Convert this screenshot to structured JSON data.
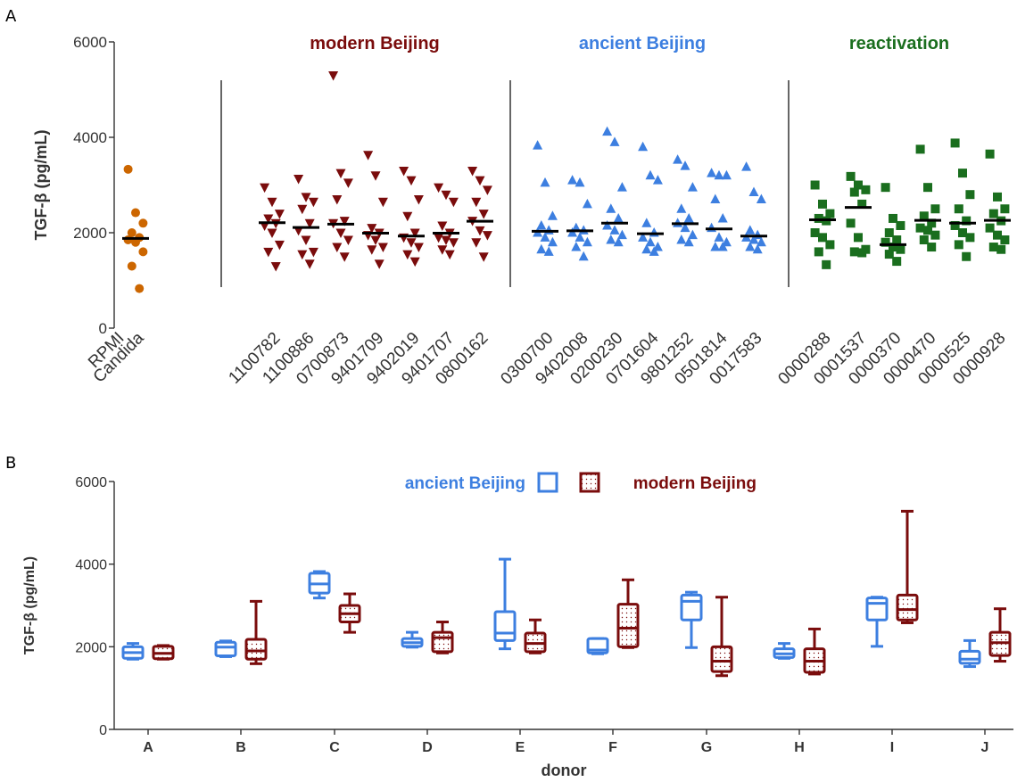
{
  "panel_a_letter": "A",
  "panel_b_letter": "B",
  "chart_data": [
    {
      "type": "scatter",
      "ylabel": "TGF-β (pg/mL)",
      "ylim": [
        0,
        6000
      ],
      "yticks": [
        "0",
        "2000",
        "4000",
        "6000"
      ],
      "median_marker": "horizontal black bar",
      "groups": [
        {
          "title": "",
          "color": "#cc6600",
          "marker": "circle",
          "categories": [
            {
              "label": "RPMI",
              "values": []
            },
            {
              "label": "Candida",
              "values": [
                3330,
                2420,
                2200,
                2000,
                1900,
                1850,
                1800,
                1600,
                1300,
                830
              ],
              "median": 1880
            }
          ]
        },
        {
          "title": "modern Beijing",
          "color": "#7a0c0c",
          "marker": "triangle-down",
          "categories": [
            {
              "label": "1100782",
              "values": [
                2950,
                2650,
                2400,
                2300,
                2200,
                2150,
                2000,
                1750,
                1600,
                1300
              ],
              "median": 2210
            },
            {
              "label": "1100886",
              "values": [
                3130,
                2750,
                2650,
                2500,
                2200,
                2050,
                1850,
                1600,
                1550,
                1350
              ],
              "median": 2110
            },
            {
              "label": "0700873",
              "values": [
                5300,
                3250,
                3050,
                2700,
                2250,
                2200,
                2000,
                1850,
                1700,
                1500
              ],
              "median": 2180
            },
            {
              "label": "9401709",
              "values": [
                3630,
                3200,
                2650,
                2100,
                2000,
                1950,
                1850,
                1700,
                1650,
                1350
              ],
              "median": 1990
            },
            {
              "label": "9402019",
              "values": [
                3300,
                3100,
                2700,
                2350,
                2000,
                1900,
                1800,
                1700,
                1550,
                1400
              ],
              "median": 1930
            },
            {
              "label": "9401707",
              "values": [
                2950,
                2800,
                2650,
                2150,
                2000,
                1900,
                1850,
                1800,
                1650,
                1550
              ],
              "median": 1990
            },
            {
              "label": "0800162",
              "values": [
                3300,
                3100,
                2900,
                2650,
                2400,
                2250,
                2050,
                1950,
                1800,
                1500
              ],
              "median": 2240
            }
          ]
        },
        {
          "title": "ancient Beijing",
          "color": "#3d7fe0",
          "marker": "triangle-up",
          "categories": [
            {
              "label": "0300700",
              "values": [
                3830,
                3050,
                2350,
                2150,
                2050,
                2000,
                1900,
                1800,
                1650,
                1600
              ],
              "median": 2030
            },
            {
              "label": "9402008",
              "values": [
                3100,
                3050,
                2600,
                2100,
                2050,
                2000,
                1900,
                1800,
                1700,
                1500
              ],
              "median": 2040
            },
            {
              "label": "0200230",
              "values": [
                4120,
                3900,
                2950,
                2500,
                2300,
                2150,
                2050,
                1950,
                1850,
                1800
              ],
              "median": 2200
            },
            {
              "label": "0701604",
              "values": [
                3800,
                3200,
                3100,
                2200,
                2000,
                1900,
                1800,
                1700,
                1650,
                1600
              ],
              "median": 1980
            },
            {
              "label": "9801252",
              "values": [
                3530,
                3400,
                2950,
                2500,
                2300,
                2200,
                2100,
                1950,
                1850,
                1800
              ],
              "median": 2190
            },
            {
              "label": "0501814",
              "values": [
                3250,
                3200,
                3200,
                2700,
                2300,
                2100,
                1900,
                1800,
                1700,
                1700
              ],
              "median": 2080
            },
            {
              "label": "0017583",
              "values": [
                3380,
                2850,
                2700,
                2050,
                1950,
                1900,
                1850,
                1800,
                1700,
                1650
              ],
              "median": 1930
            }
          ]
        },
        {
          "title": "reactivation",
          "color": "#1a6e1e",
          "marker": "square",
          "categories": [
            {
              "label": "0000288",
              "values": [
                3000,
                2600,
                2400,
                2300,
                2250,
                2000,
                1900,
                1750,
                1600,
                1330
              ],
              "median": 2270
            },
            {
              "label": "0001537",
              "values": [
                3180,
                3000,
                2900,
                2850,
                2600,
                2200,
                1900,
                1650,
                1600,
                1580
              ],
              "median": 2530
            },
            {
              "label": "0000370",
              "values": [
                2950,
                2300,
                2150,
                2000,
                1850,
                1800,
                1700,
                1650,
                1550,
                1400
              ],
              "median": 1750
            },
            {
              "label": "0000470",
              "values": [
                3750,
                2950,
                2500,
                2350,
                2200,
                2100,
                2050,
                1950,
                1850,
                1700
              ],
              "median": 2260
            },
            {
              "label": "0000525",
              "values": [
                3880,
                3250,
                2800,
                2500,
                2250,
                2150,
                2000,
                1900,
                1750,
                1500
              ],
              "median": 2200
            },
            {
              "label": "0000928",
              "values": [
                3650,
                2750,
                2500,
                2400,
                2250,
                2100,
                1950,
                1850,
                1700,
                1650
              ],
              "median": 2260
            }
          ]
        }
      ]
    },
    {
      "type": "box",
      "xlabel": "donor",
      "ylabel": "TGF-β (pg/mL)",
      "ylim": [
        0,
        6000
      ],
      "yticks": [
        "0",
        "2000",
        "4000",
        "6000"
      ],
      "legend_position": "top-center",
      "categories": [
        "A",
        "B",
        "C",
        "D",
        "E",
        "F",
        "G",
        "H",
        "I",
        "J"
      ],
      "series": [
        {
          "name": "ancient Beijing",
          "color": "#3d7fe0",
          "fill": "none",
          "boxes": [
            {
              "min": 1700,
              "q1": 1720,
              "median": 1860,
              "q3": 2000,
              "max": 2080
            },
            {
              "min": 1760,
              "q1": 1780,
              "median": 1990,
              "q3": 2110,
              "max": 2140
            },
            {
              "min": 3180,
              "q1": 3300,
              "median": 3520,
              "q3": 3780,
              "max": 3820
            },
            {
              "min": 1990,
              "q1": 2010,
              "median": 2100,
              "q3": 2200,
              "max": 2350
            },
            {
              "min": 1950,
              "q1": 2150,
              "median": 2330,
              "q3": 2850,
              "max": 4120
            },
            {
              "min": 1830,
              "q1": 1850,
              "median": 1920,
              "q3": 2200,
              "max": 2200
            },
            {
              "min": 1980,
              "q1": 2650,
              "median": 3100,
              "q3": 3250,
              "max": 3320
            },
            {
              "min": 1720,
              "q1": 1740,
              "median": 1830,
              "q3": 1950,
              "max": 2080
            },
            {
              "min": 2010,
              "q1": 2650,
              "median": 3050,
              "q3": 3180,
              "max": 3200
            },
            {
              "min": 1520,
              "q1": 1600,
              "median": 1700,
              "q3": 1890,
              "max": 2150
            }
          ]
        },
        {
          "name": "modern Beijing",
          "color": "#7a0c0c",
          "fill": "dotted",
          "boxes": [
            {
              "min": 1700,
              "q1": 1710,
              "median": 1840,
              "q3": 2010,
              "max": 2030
            },
            {
              "min": 1590,
              "q1": 1700,
              "median": 1900,
              "q3": 2180,
              "max": 3100
            },
            {
              "min": 2350,
              "q1": 2600,
              "median": 2800,
              "q3": 3000,
              "max": 3280
            },
            {
              "min": 1850,
              "q1": 1880,
              "median": 2220,
              "q3": 2350,
              "max": 2600
            },
            {
              "min": 1850,
              "q1": 1880,
              "median": 2080,
              "q3": 2330,
              "max": 2650
            },
            {
              "min": 1980,
              "q1": 2000,
              "median": 2450,
              "q3": 3030,
              "max": 3620
            },
            {
              "min": 1300,
              "q1": 1400,
              "median": 1650,
              "q3": 2000,
              "max": 3200
            },
            {
              "min": 1340,
              "q1": 1380,
              "median": 1650,
              "q3": 1950,
              "max": 2430
            },
            {
              "min": 2580,
              "q1": 2650,
              "median": 2900,
              "q3": 3250,
              "max": 5280
            },
            {
              "min": 1650,
              "q1": 1790,
              "median": 2100,
              "q3": 2350,
              "max": 2920
            }
          ]
        }
      ]
    }
  ]
}
